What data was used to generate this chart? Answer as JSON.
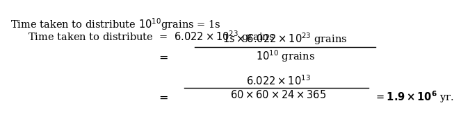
{
  "line1": "Time taken to distribute $10^{10}$grains = 1s",
  "line2": "Time taken to distribute  =  $6.022 \\times 10^{23}$ grains",
  "eq1": "=",
  "frac1_num": "$1s \\times 6.022 \\times 10^{23}$ grains",
  "frac1_den": "$10^{10}$ grains",
  "eq2": "=",
  "frac2_num": "$6.022 \\times 10^{13}$",
  "frac2_den": "$60 \\times 60 \\times 24 \\times 365$",
  "result": "$= \\mathbf{1.9 \\times 10^{6}}$ yr.",
  "bg_color": "#ffffff",
  "text_color": "#000000",
  "fontsize": 10.5
}
